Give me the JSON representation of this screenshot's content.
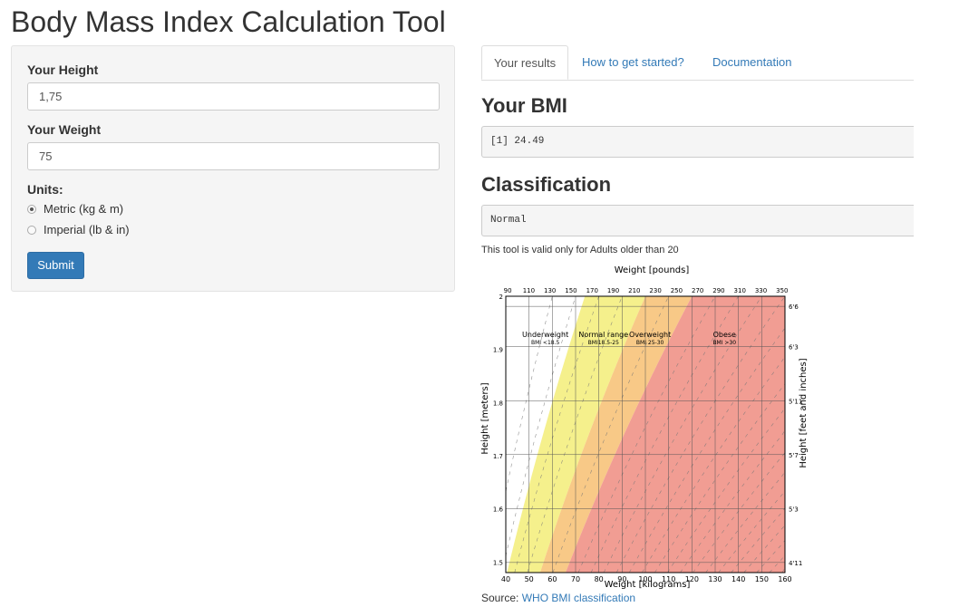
{
  "app": {
    "title": "Body Mass Index Calculation Tool"
  },
  "form": {
    "height_label": "Your Height",
    "height_value": "1,75",
    "weight_label": "Your Weight",
    "weight_value": "75",
    "units_label": "Units:",
    "units_options": [
      "Metric (kg & m)",
      "Imperial (lb & in)"
    ],
    "units_selected": "Metric (kg & m)",
    "submit_label": "Submit"
  },
  "tabs": [
    "Your results",
    "How to get started?",
    "Documentation"
  ],
  "results": {
    "bmi_heading": "Your BMI",
    "bmi_output": "[1] 24.49",
    "class_heading": "Classification",
    "class_output": "Normal",
    "note": "This tool is valid only for Adults older than 20",
    "source_prefix": "Source:",
    "source_link": "WHO BMI classification"
  },
  "chart_data": {
    "type": "area",
    "top_axis_label": "Weight [pounds]",
    "xlabel": "Weight [kilograms]",
    "ylabel": "Height [meters]",
    "right_axis_label": "Height [feet and inches]",
    "xlim": [
      40,
      160
    ],
    "ylim": [
      1.48,
      2.0
    ],
    "x_ticks": [
      40,
      50,
      60,
      70,
      80,
      90,
      100,
      110,
      120,
      130,
      140,
      150,
      160
    ],
    "y_ticks": [
      1.5,
      1.6,
      1.7,
      1.8,
      1.9,
      2
    ],
    "y_tick_labels": [
      "1.5",
      "1.6",
      "1.7",
      "1.8",
      "1.9",
      "2"
    ],
    "top_ticks": [
      90,
      110,
      130,
      150,
      170,
      190,
      210,
      230,
      250,
      270,
      290,
      310,
      330,
      350
    ],
    "right_ticks": [
      {
        "label": "4'11",
        "value": 1.499
      },
      {
        "label": "5'3",
        "value": 1.6
      },
      {
        "label": "5'7",
        "value": 1.702
      },
      {
        "label": "5'11",
        "value": 1.803
      },
      {
        "label": "6'3",
        "value": 1.905
      },
      {
        "label": "6'6",
        "value": 1.981
      }
    ],
    "bmi_boundaries": [
      18.5,
      25,
      30
    ],
    "regions": [
      {
        "name": "Underweight",
        "range": "BMI <18.5",
        "color": "#ffffff",
        "label_x": 57
      },
      {
        "name": "Normal range",
        "range": "BMI18.5-25",
        "color": "#f5f08c",
        "label_x": 82
      },
      {
        "name": "Overweight",
        "range": "BMI 25-30",
        "color": "#f8c987",
        "label_x": 102
      },
      {
        "name": "Obese",
        "range": "BMI >30",
        "color": "#f19d93",
        "label_x": 134
      }
    ],
    "grid": true
  },
  "colors": {
    "primary": "#337ab7",
    "link": "#337ab7",
    "panel_bg": "#f5f5f5"
  }
}
